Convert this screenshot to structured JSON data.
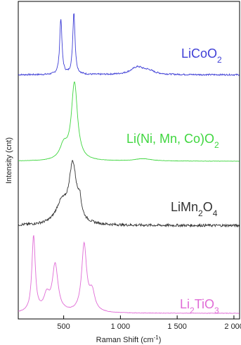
{
  "chart_data": {
    "type": "line",
    "xlabel": "Raman Shift (cm",
    "xlabel_sup": "-1",
    "xlabel_suffix": ")",
    "ylabel": "Intensity (cnt)",
    "xlim": [
      100,
      2050
    ],
    "xticks": [
      {
        "value": 500,
        "label": "500"
      },
      {
        "value": 1000,
        "label": "1 000"
      },
      {
        "value": 1500,
        "label": "1 500"
      },
      {
        "value": 2000,
        "label": "2 000"
      }
    ],
    "grid": false,
    "series": [
      {
        "name_parts": [
          {
            "t": "LiCoO"
          },
          {
            "t": "2",
            "sub": true
          }
        ],
        "color": "#3f3fd6",
        "baseline": 0.02,
        "noise": 0.012,
        "peaks": [
          [
            475,
            12,
            0.9
          ],
          [
            590,
            12,
            1.0
          ],
          [
            1150,
            70,
            0.12
          ],
          [
            1250,
            60,
            0.05
          ]
        ]
      },
      {
        "name_parts": [
          {
            "t": "Li(Ni, Mn, Co)O"
          },
          {
            "t": "2",
            "sub": true
          }
        ],
        "color": "#3fd63f",
        "baseline": 0.0,
        "noise": 0.002,
        "peaks": [
          [
            595,
            32,
            1.0
          ],
          [
            500,
            40,
            0.18
          ],
          [
            1200,
            90,
            0.03
          ]
        ]
      },
      {
        "name_parts": [
          {
            "t": "LiMn"
          },
          {
            "t": "2",
            "sub": true
          },
          {
            "t": "O"
          },
          {
            "t": "4",
            "sub": true
          }
        ],
        "color": "#333333",
        "baseline": 0.04,
        "noise": 0.02,
        "peaks": [
          [
            580,
            40,
            0.9
          ],
          [
            480,
            60,
            0.3
          ],
          [
            640,
            18,
            0.25
          ]
        ]
      },
      {
        "name_parts": [
          {
            "t": "Li"
          },
          {
            "t": "2",
            "sub": true
          },
          {
            "t": "TiO"
          },
          {
            "t": "3",
            "sub": true
          }
        ],
        "color": "#e06bd6",
        "baseline": 0.0,
        "noise": 0.003,
        "peaks": [
          [
            235,
            18,
            1.0
          ],
          [
            350,
            30,
            0.2
          ],
          [
            425,
            30,
            0.62
          ],
          [
            680,
            26,
            0.88
          ],
          [
            750,
            30,
            0.25
          ]
        ]
      }
    ]
  }
}
